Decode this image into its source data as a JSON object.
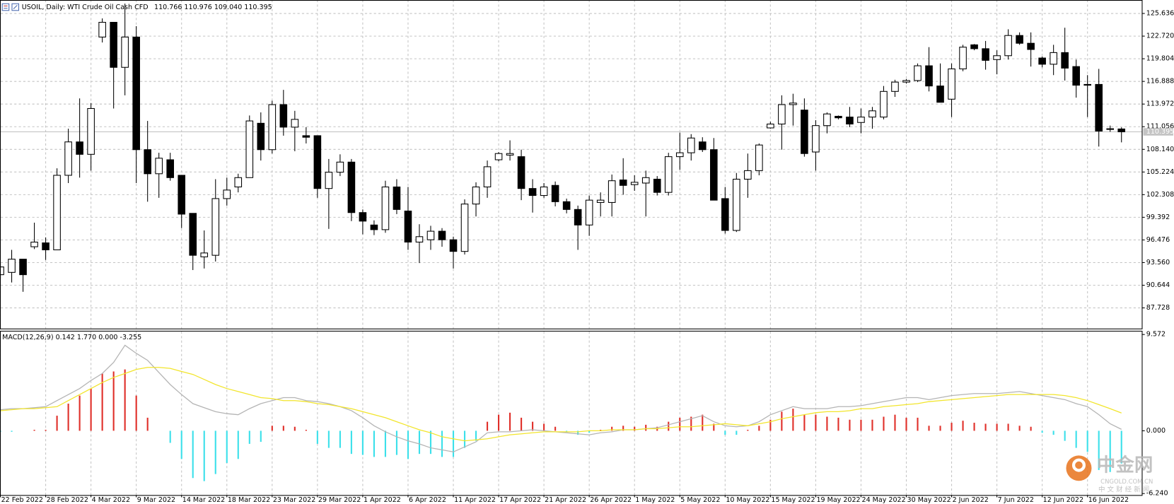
{
  "chart_data": [
    {
      "type": "candlestick",
      "title": "USOIL, Daily:  WTI Crude Oil Cash CFD",
      "info": "110.766 110.976 109.040 110.395",
      "categories": [
        "22 Feb 2022",
        null,
        null,
        null,
        "28 Feb 2022",
        null,
        null,
        null,
        "4 Mar 2022",
        null,
        null,
        null,
        "9 Mar 2022",
        null,
        null,
        null,
        "14 Mar 2022",
        null,
        null,
        null,
        "18 Mar 2022",
        null,
        null,
        null,
        "23 Mar 2022",
        null,
        null,
        null,
        "29 Mar 2022",
        null,
        null,
        null,
        "1 Apr 2022",
        null,
        null,
        null,
        "6 Apr 2022",
        null,
        null,
        null,
        "11 Apr 2022",
        null,
        null,
        null,
        "17 Apr 2022",
        null,
        null,
        null,
        "21 Apr 2022",
        null,
        null,
        null,
        "26 Apr 2022",
        null,
        null,
        null,
        "1 May 2022",
        null,
        null,
        null,
        "5 May 2022",
        null,
        null,
        null,
        "10 May 2022",
        null,
        null,
        null,
        "15 May 2022",
        null,
        null,
        null,
        "19 May 2022",
        null,
        null,
        null,
        "24 May 2022",
        null,
        null,
        null,
        "30 May 2022",
        null,
        null,
        null,
        "2 Jun 2022",
        null,
        null,
        null,
        "7 Jun 2022",
        null,
        null,
        null,
        "12 Jun 2022",
        null,
        null,
        null,
        "16 Jun 2022",
        null,
        null,
        null
      ],
      "open": [
        92,
        92.3,
        94,
        95.6,
        96.1,
        95.2,
        104.8,
        109.1,
        107.5,
        122.6,
        124.5,
        118.7,
        122.6,
        108.1,
        105,
        106.8,
        104.8,
        99.9,
        94.3,
        94.5,
        101.8,
        103.3,
        104.5,
        111.5,
        108.1,
        113.9,
        111,
        109.9,
        109.9,
        103.1,
        105.2,
        106.5,
        100,
        98.4,
        97.8,
        103.3,
        100.2,
        96.2,
        96.5,
        97.6,
        96.5,
        95,
        101.1,
        103.3,
        106.8,
        107.4,
        107.2,
        103.1,
        102.2,
        103.5,
        101.4,
        100.4,
        98.4,
        101.3,
        101.3,
        104.2,
        103.6,
        103.8,
        104.3,
        102.6,
        107.2,
        107.7,
        109.1,
        108.1,
        101.8,
        97.7,
        104.3,
        105.4,
        110.9,
        111.4,
        113.9,
        113.2,
        107.8,
        111.2,
        112.4,
        112.3,
        111.6,
        112.3,
        112.3,
        115.6,
        116.8,
        117,
        118.9,
        116.3,
        114.6,
        118.5,
        121.6,
        121.1,
        119.7,
        120.2,
        122.8,
        121.8,
        119.9,
        119.1,
        120.6,
        118.8,
        116.5,
        116.5,
        110.7,
        110.766
      ],
      "high": [
        93.5,
        95.2,
        94,
        98.7,
        96.8,
        105.7,
        110.8,
        114.7,
        114.1,
        125,
        124.5,
        126.9,
        124,
        111.8,
        107.7,
        107.7,
        104.8,
        99.9,
        97.7,
        104.3,
        104.5,
        105,
        112.5,
        112.9,
        114.4,
        115.8,
        113.1,
        111,
        109.9,
        106.9,
        107.5,
        106.9,
        100.4,
        99,
        104.1,
        104.3,
        103.3,
        98.5,
        98.3,
        98,
        96.9,
        101.7,
        103.9,
        106.7,
        107.8,
        109.3,
        108.1,
        104.3,
        103.8,
        104,
        101.8,
        100.9,
        102.2,
        102.6,
        104.9,
        107,
        104.8,
        105.4,
        104.7,
        107.7,
        110.3,
        110.1,
        109.7,
        109.6,
        103.3,
        105.1,
        107.6,
        108.9,
        111.7,
        115.1,
        115.3,
        114.7,
        111.9,
        112.9,
        112.5,
        113.6,
        113.4,
        113.6,
        116.3,
        117.1,
        117.2,
        119.2,
        121.3,
        119.2,
        119.2,
        121.6,
        121.7,
        122.1,
        120.9,
        123.6,
        123.2,
        123.2,
        120.1,
        121.6,
        123.8,
        119.7,
        117.7,
        118.5,
        111.2,
        110.976
      ],
      "low": [
        91.5,
        91,
        89.8,
        95.3,
        93.9,
        95.2,
        103.8,
        104.5,
        105.4,
        121.9,
        113.4,
        115.1,
        103.8,
        101.4,
        101.9,
        104.1,
        98,
        92.6,
        92.8,
        93.7,
        100.9,
        102.6,
        104.5,
        106.7,
        107.6,
        109.9,
        107.9,
        108.9,
        101.9,
        97.9,
        104.7,
        98.9,
        97.2,
        97.1,
        97.4,
        99.8,
        95.2,
        93.5,
        95.2,
        95.6,
        92.8,
        94.6,
        99.5,
        101.9,
        106.6,
        106.7,
        101.6,
        100,
        101.9,
        100.8,
        99.9,
        95.2,
        97,
        99.5,
        99.5,
        102.3,
        102.8,
        99.5,
        102.2,
        102.2,
        105.5,
        106.7,
        107.8,
        101.6,
        97.3,
        97.5,
        101.9,
        104.8,
        110.8,
        108.1,
        111.2,
        107.2,
        105.4,
        110.2,
        112,
        111,
        110.2,
        110.8,
        112,
        114.9,
        116.6,
        116.8,
        115.6,
        114.2,
        112.3,
        118.2,
        120.9,
        118.4,
        117.8,
        119.7,
        121.6,
        118.8,
        118.7,
        117.7,
        117,
        114.8,
        112.3,
        108.5,
        110.4,
        109.04
      ],
      "close": [
        93,
        94,
        92,
        96.2,
        95.2,
        104.8,
        109.1,
        107.5,
        113.4,
        124.5,
        118.7,
        122.6,
        108.1,
        105,
        107,
        104.5,
        99.8,
        94.5,
        94.8,
        101.8,
        102.9,
        104.5,
        111.8,
        108.1,
        113.9,
        111,
        112,
        109.7,
        103.1,
        105.2,
        106.5,
        100,
        98.9,
        97.8,
        103.3,
        100.4,
        96.2,
        96.9,
        97.6,
        96.5,
        95,
        101.1,
        103.3,
        105.9,
        107.6,
        107.6,
        103.1,
        102.2,
        103.3,
        101.4,
        100.4,
        98.4,
        101.6,
        101.6,
        104.1,
        103.5,
        103.9,
        104.5,
        102.6,
        107.2,
        107.7,
        109.6,
        108.1,
        101.6,
        97.7,
        104.3,
        105.4,
        108.7,
        111.4,
        113.9,
        114.1,
        107.6,
        111.2,
        112.7,
        112.2,
        111.4,
        112.3,
        113.1,
        115.6,
        116.8,
        117,
        118.9,
        116.3,
        114.2,
        118.5,
        121.3,
        121.1,
        119.6,
        120.2,
        122.8,
        121.8,
        121,
        119.1,
        120.6,
        118.6,
        116.4,
        116.4,
        110.5,
        110.8,
        110.395
      ],
      "up_color": "#ffffff",
      "down_color": "#000000",
      "ylim": [
        85.07,
        127.37
      ],
      "yticks": [
        125.636,
        {
          "value": 122.72,
          "label": "122.720"
        },
        119.804,
        116.888,
        113.972,
        111.056,
        {
          "value": 108.14,
          "label": "108.140"
        },
        105.224,
        102.308,
        99.392,
        96.476,
        {
          "value": 93.56,
          "label": "93.560"
        },
        90.644,
        87.728
      ],
      "grid": true
    },
    {
      "type": "macd",
      "title": "MACD(12,26,9) 0.142 1.770 0.000 -3.255",
      "histogram": {
        "up_color": "#e0302a",
        "down_color": "#3ce0ea",
        "values": [
          -0.1,
          -0.1,
          0,
          0.1,
          0.1,
          1.5,
          2.7,
          3.5,
          4.2,
          5.7,
          5.9,
          6.1,
          3.5,
          1.3,
          0,
          -1.2,
          -2.8,
          -4.7,
          -5,
          -4.3,
          -3.2,
          -2.8,
          -1.3,
          -1.1,
          0.5,
          0.5,
          0.4,
          0.1,
          -1.3,
          -1.7,
          -1.7,
          -2.3,
          -2.4,
          -2.6,
          -2.6,
          -2.4,
          -2.8,
          -2.3,
          -2.3,
          -2.6,
          -2.6,
          -1.7,
          -1,
          0.9,
          1.6,
          1.8,
          1.3,
          0.9,
          0.7,
          0.4,
          -0.1,
          -0.4,
          -0.2,
          0.1,
          0.4,
          0.5,
          0.4,
          0.6,
          0.4,
          0.9,
          1.3,
          1.4,
          1.6,
          0.7,
          -0.4,
          -0.4,
          0.1,
          0.5,
          1.1,
          1.9,
          2.2,
          1.6,
          1.6,
          1.4,
          1.3,
          1.1,
          1.1,
          1.1,
          1.4,
          1.6,
          1.3,
          1.3,
          0.5,
          0.5,
          0.8,
          1,
          0.8,
          0.7,
          0.7,
          0.7,
          0.5,
          0.4,
          -0.2,
          -0.4,
          -1,
          -1.7,
          -2.1,
          -3.9,
          -4.1,
          -3.255
        ]
      },
      "series": [
        {
          "color": "#b4b4b4",
          "values": [
            2.1,
            2.2,
            2.2,
            2.3,
            2.4,
            3.0,
            3.6,
            4.2,
            5.0,
            5.7,
            6.8,
            8.5,
            7.7,
            7.0,
            5.8,
            4.6,
            3.6,
            2.7,
            2.3,
            1.9,
            1.7,
            1.6,
            2.2,
            2.7,
            3.0,
            3.3,
            3.3,
            3.0,
            2.9,
            2.7,
            2.4,
            2.0,
            1.3,
            0.5,
            -0.1,
            -0.6,
            -1.0,
            -1.3,
            -1.7,
            -1.9,
            -2.1,
            -1.6,
            -1.1,
            -0.2,
            -0.1,
            -0.1,
            0,
            0.1,
            0,
            -0.1,
            -0.2,
            -0.3,
            -0.4,
            -0.2,
            -0.1,
            0.1,
            0.1,
            0.2,
            0.3,
            0.6,
            0.9,
            1.2,
            1.5,
            0.9,
            0.5,
            0.4,
            0.5,
            0.9,
            1.6,
            2.0,
            2.4,
            2.2,
            2.2,
            2.2,
            2.4,
            2.4,
            2.5,
            2.7,
            2.9,
            3.1,
            3.3,
            3.3,
            3.1,
            3.3,
            3.5,
            3.6,
            3.7,
            3.7,
            3.7,
            3.8,
            3.9,
            3.7,
            3.5,
            3.3,
            3.1,
            2.7,
            2.4,
            1.6,
            0.7,
            0.142
          ]
        },
        {
          "color": "#f2e52c",
          "values": [
            2.0,
            2.1,
            2.2,
            2.2,
            2.3,
            2.4,
            3.0,
            3.6,
            4.2,
            4.8,
            5.3,
            5.7,
            6.1,
            6.3,
            6.3,
            6.2,
            5.9,
            5.6,
            5.1,
            4.6,
            4.2,
            3.9,
            3.6,
            3.3,
            3.2,
            3.0,
            3.0,
            2.9,
            2.7,
            2.6,
            2.4,
            2.2,
            1.9,
            1.6,
            1.3,
            0.9,
            0.5,
            0.1,
            -0.2,
            -0.6,
            -0.8,
            -1.0,
            -0.9,
            -0.8,
            -0.6,
            -0.4,
            -0.3,
            -0.2,
            -0.1,
            -0.1,
            -0.1,
            -0.1,
            0,
            0,
            0.1,
            0.1,
            0.1,
            0.2,
            0.2,
            0.3,
            0.4,
            0.4,
            0.5,
            0.6,
            0.7,
            0.6,
            0.5,
            0.7,
            0.9,
            1.2,
            1.4,
            1.6,
            1.8,
            1.9,
            1.9,
            2.0,
            2.2,
            2.2,
            2.4,
            2.5,
            2.6,
            2.7,
            2.9,
            3.0,
            3.1,
            3.2,
            3.3,
            3.4,
            3.5,
            3.6,
            3.6,
            3.6,
            3.6,
            3.6,
            3.5,
            3.3,
            3.0,
            2.6,
            2.2,
            1.77
          ]
        }
      ],
      "ylim": [
        -6.24,
        9.572
      ],
      "yticks": [
        9.572,
        {
          "value": 0,
          "label": "0.000"
        },
        {
          "value": -6.24,
          "label": "-6.240"
        }
      ]
    }
  ],
  "watermark": {
    "brand": "中金网",
    "site": "CNGOLD.COM.CN",
    "tagline": "中 文 财 经 新 闻"
  }
}
